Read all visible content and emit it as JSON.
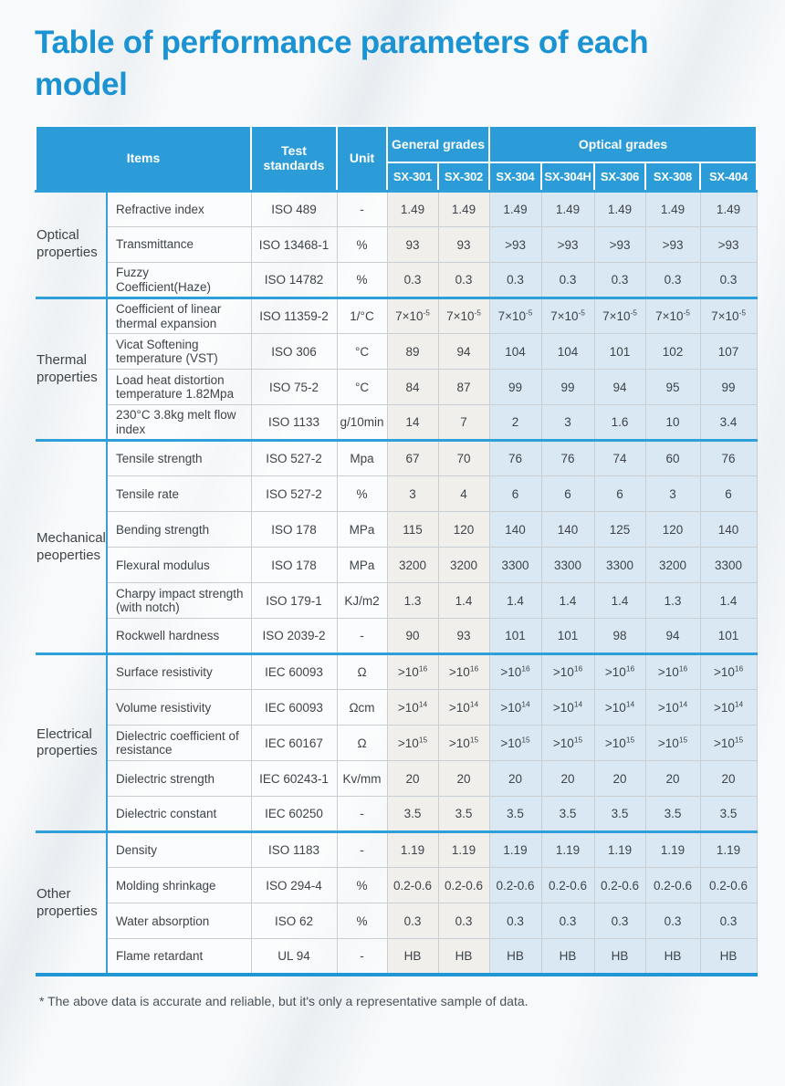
{
  "page": {
    "title": "Table of performance parameters of each model",
    "footnote": "* The above data is accurate and reliable, but it's only a representative sample of data."
  },
  "colors": {
    "title_blue": "#1b93d2",
    "header_blue": "#2b9cd8",
    "divider_blue": "#2e9fd9",
    "general_grades_bg": "#f0efec",
    "optical_grades_bg": "#d9e8f3"
  },
  "table": {
    "header": {
      "items": "Items",
      "test_standards": "Test standards",
      "unit": "Unit",
      "groups": [
        {
          "label": "General grades",
          "models": [
            "SX-301",
            "SX-302"
          ]
        },
        {
          "label": "Optical grades",
          "models": [
            "SX-304",
            "SX-304H",
            "SX-306",
            "SX-308",
            "SX-404"
          ]
        }
      ]
    },
    "sections": [
      {
        "group": "Optical properties",
        "rows": [
          {
            "item": "Refractive index",
            "standard": "ISO 489",
            "unit": "-",
            "values": [
              "1.49",
              "1.49",
              "1.49",
              "1.49",
              "1.49",
              "1.49",
              "1.49"
            ]
          },
          {
            "item": "Transmittance",
            "standard": "ISO 13468-1",
            "unit": "%",
            "values": [
              "93",
              "93",
              ">93",
              ">93",
              ">93",
              ">93",
              ">93"
            ]
          },
          {
            "item": "Fuzzy Coefficient(Haze)",
            "standard": "ISO 14782",
            "unit": "%",
            "values": [
              "0.3",
              "0.3",
              "0.3",
              "0.3",
              "0.3",
              "0.3",
              "0.3"
            ]
          }
        ]
      },
      {
        "group": "Thermal properties",
        "rows": [
          {
            "item": "Coefficient of linear thermal expansion",
            "standard": "ISO 11359-2",
            "unit": "1/°C",
            "values": [
              "7×10^-5",
              "7×10^-5",
              "7×10^-5",
              "7×10^-5",
              "7×10^-5",
              "7×10^-5",
              "7×10^-5"
            ]
          },
          {
            "item": "Vicat Softening temperature (VST)",
            "standard": "ISO 306",
            "unit": "°C",
            "values": [
              "89",
              "94",
              "104",
              "104",
              "101",
              "102",
              "107"
            ]
          },
          {
            "item": "Load heat distortion temperature 1.82Mpa",
            "standard": "ISO 75-2",
            "unit": "°C",
            "values": [
              "84",
              "87",
              "99",
              "99",
              "94",
              "95",
              "99"
            ]
          },
          {
            "item": "230°C 3.8kg melt flow index",
            "standard": "ISO 1133",
            "unit": "g/10min",
            "values": [
              "14",
              "7",
              "2",
              "3",
              "1.6",
              "10",
              "3.4"
            ]
          }
        ]
      },
      {
        "group": "Mechanical peoperties",
        "rows": [
          {
            "item": "Tensile strength",
            "standard": "ISO 527-2",
            "unit": "Mpa",
            "values": [
              "67",
              "70",
              "76",
              "76",
              "74",
              "60",
              "76"
            ]
          },
          {
            "item": "Tensile rate",
            "standard": "ISO 527-2",
            "unit": "%",
            "values": [
              "3",
              "4",
              "6",
              "6",
              "6",
              "3",
              "6"
            ]
          },
          {
            "item": "Bending strength",
            "standard": "ISO 178",
            "unit": "MPa",
            "values": [
              "115",
              "120",
              "140",
              "140",
              "125",
              "120",
              "140"
            ]
          },
          {
            "item": "Flexural modulus",
            "standard": "ISO 178",
            "unit": "MPa",
            "values": [
              "3200",
              "3200",
              "3300",
              "3300",
              "3300",
              "3200",
              "3300"
            ]
          },
          {
            "item": "Charpy impact strength (with notch)",
            "standard": "ISO 179-1",
            "unit": "KJ/m2",
            "values": [
              "1.3",
              "1.4",
              "1.4",
              "1.4",
              "1.4",
              "1.3",
              "1.4"
            ]
          },
          {
            "item": "Rockwell hardness",
            "standard": "ISO 2039-2",
            "unit": "-",
            "values": [
              "90",
              "93",
              "101",
              "101",
              "98",
              "94",
              "101"
            ]
          }
        ]
      },
      {
        "group": "Electrical properties",
        "rows": [
          {
            "item": "Surface resistivity",
            "standard": "IEC 60093",
            "unit": "Ω",
            "values": [
              ">10^16",
              ">10^16",
              ">10^16",
              ">10^16",
              ">10^16",
              ">10^16",
              ">10^16"
            ]
          },
          {
            "item": "Volume resistivity",
            "standard": "IEC 60093",
            "unit": "Ωcm",
            "values": [
              ">10^14",
              ">10^14",
              ">10^14",
              ">10^14",
              ">10^14",
              ">10^14",
              ">10^14"
            ]
          },
          {
            "item": "Dielectric coefficient of resistance",
            "standard": "IEC 60167",
            "unit": "Ω",
            "values": [
              ">10^15",
              ">10^15",
              ">10^15",
              ">10^15",
              ">10^15",
              ">10^15",
              ">10^15"
            ]
          },
          {
            "item": "Dielectric strength",
            "standard": "IEC 60243-1",
            "unit": "Kv/mm",
            "values": [
              "20",
              "20",
              "20",
              "20",
              "20",
              "20",
              "20"
            ]
          },
          {
            "item": "Dielectric constant",
            "standard": "IEC 60250",
            "unit": "-",
            "values": [
              "3.5",
              "3.5",
              "3.5",
              "3.5",
              "3.5",
              "3.5",
              "3.5"
            ]
          }
        ]
      },
      {
        "group": "Other properties",
        "rows": [
          {
            "item": "Density",
            "standard": "ISO 1183",
            "unit": "-",
            "values": [
              "1.19",
              "1.19",
              "1.19",
              "1.19",
              "1.19",
              "1.19",
              "1.19"
            ]
          },
          {
            "item": "Molding shrinkage",
            "standard": "ISO 294-4",
            "unit": "%",
            "values": [
              "0.2-0.6",
              "0.2-0.6",
              "0.2-0.6",
              "0.2-0.6",
              "0.2-0.6",
              "0.2-0.6",
              "0.2-0.6"
            ]
          },
          {
            "item": "Water absorption",
            "standard": "ISO 62",
            "unit": "%",
            "values": [
              "0.3",
              "0.3",
              "0.3",
              "0.3",
              "0.3",
              "0.3",
              "0.3"
            ]
          },
          {
            "item": "Flame retardant",
            "standard": "UL 94",
            "unit": "-",
            "values": [
              "HB",
              "HB",
              "HB",
              "HB",
              "HB",
              "HB",
              "HB"
            ]
          }
        ]
      }
    ]
  }
}
